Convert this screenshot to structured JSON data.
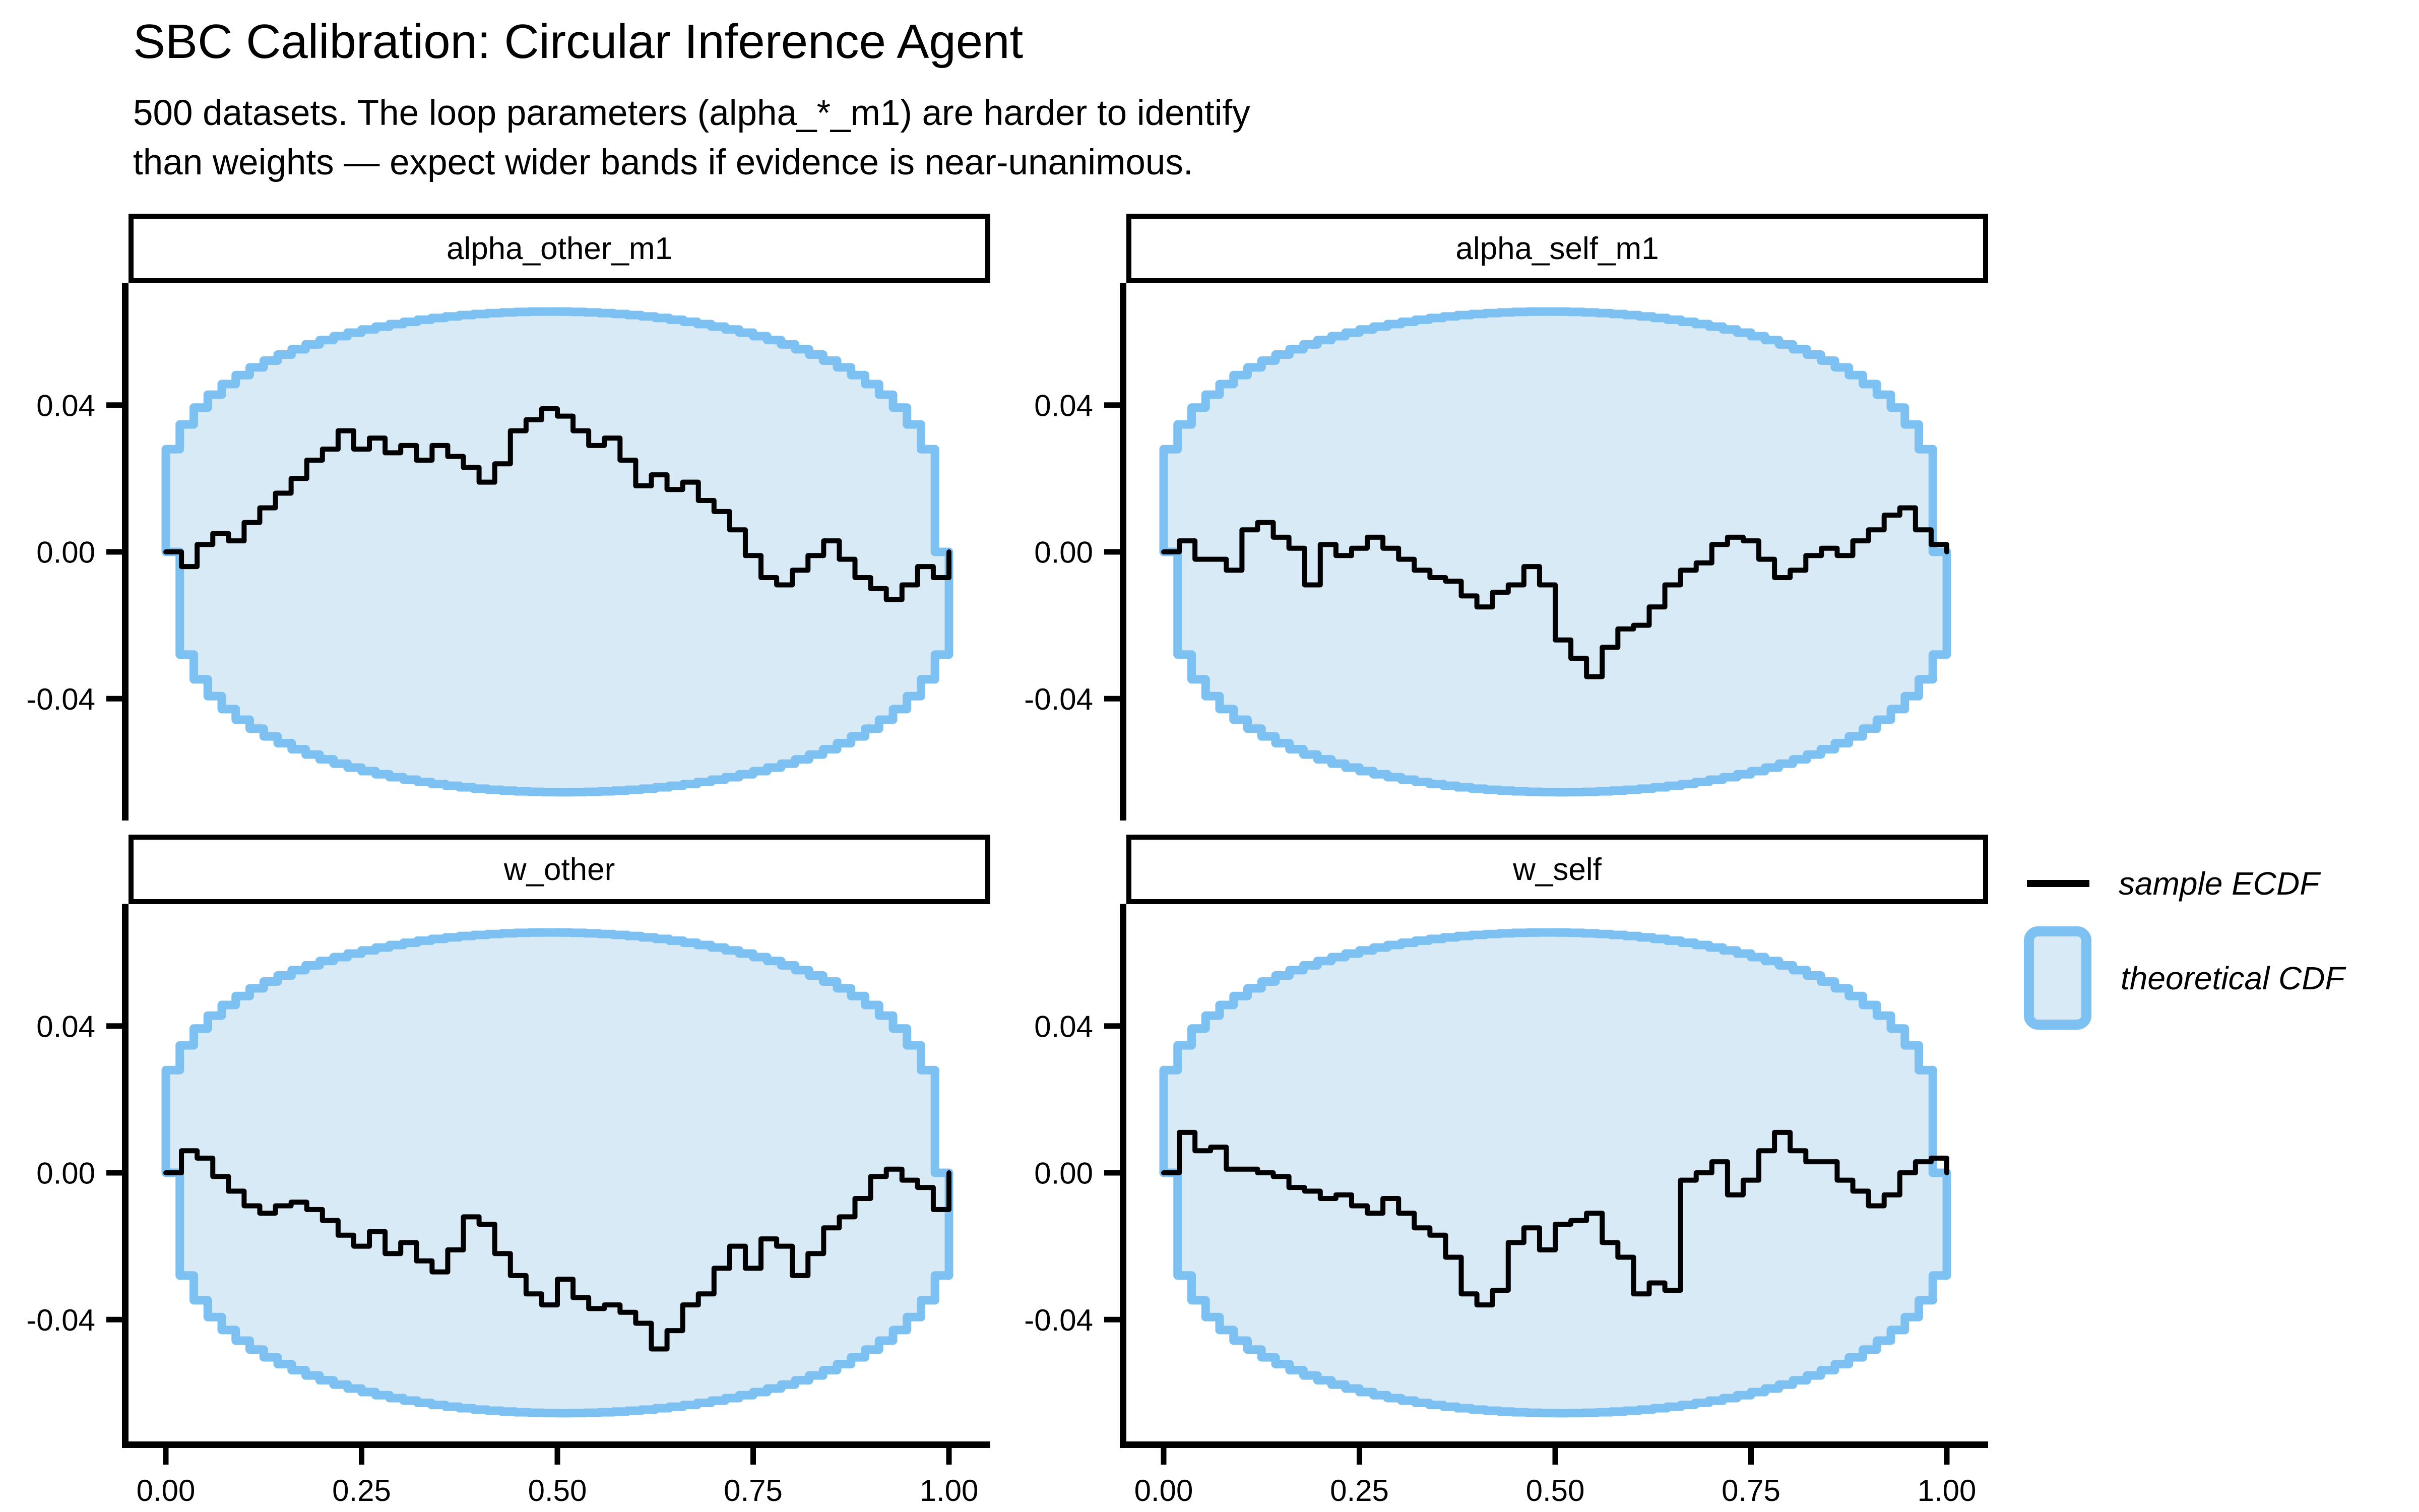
{
  "title": "SBC Calibration: Circular Inference Agent",
  "subtitle": "500 datasets. The loop parameters (alpha_*_m1) are harder to identify\nthan weights — expect wider bands if evidence is near-unanimous.",
  "legend": {
    "items": [
      {
        "label": "sample ECDF",
        "swatch": "line-swatch"
      },
      {
        "label": "theoretical CDF",
        "swatch": "band-swatch"
      }
    ]
  },
  "colors": {
    "band_fill": "#D9EAF7",
    "band_stroke": "#7DC1F2",
    "ecdf_line": "#000000",
    "axis": "#000000",
    "text": "#000000",
    "background": "#FFFFFF"
  },
  "chart_data": {
    "type": "line",
    "kind": "sbc-ecdf-diff-facets",
    "x_range": [
      0,
      1
    ],
    "ylim": [
      -0.0732,
      0.0732
    ],
    "x_ticks": [
      "0.00",
      "0.25",
      "0.50",
      "0.75",
      "1.00"
    ],
    "x_tick_values": [
      0,
      0.25,
      0.5,
      0.75,
      1
    ],
    "y_ticks": [
      "0.04",
      "0.00",
      "-0.04"
    ],
    "y_tick_values": [
      0.04,
      0,
      -0.04
    ],
    "grid": false,
    "legend_position": "right",
    "series_step": 0.02,
    "band": {
      "label": "theoretical CDF",
      "half_height_max": 0.0655,
      "shape_exponent": 0.32,
      "n_steps": 56
    },
    "panels": [
      {
        "title": "alpha_other_m1",
        "values": [
          0.0,
          -0.004,
          0.002,
          0.005,
          0.003,
          0.008,
          0.012,
          0.016,
          0.02,
          0.025,
          0.028,
          0.033,
          0.028,
          0.031,
          0.027,
          0.029,
          0.025,
          0.029,
          0.026,
          0.023,
          0.019,
          0.024,
          0.033,
          0.036,
          0.039,
          0.037,
          0.033,
          0.029,
          0.031,
          0.025,
          0.018,
          0.021,
          0.017,
          0.019,
          0.014,
          0.011,
          0.006,
          -0.001,
          -0.007,
          -0.009,
          -0.005,
          -0.001,
          0.003,
          -0.002,
          -0.007,
          -0.01,
          -0.013,
          -0.009,
          -0.004,
          -0.007,
          0.0
        ]
      },
      {
        "title": "alpha_self_m1",
        "values": [
          0.0,
          0.003,
          -0.002,
          -0.002,
          -0.005,
          0.006,
          0.008,
          0.004,
          0.001,
          -0.009,
          0.002,
          -0.001,
          0.001,
          0.004,
          0.001,
          -0.002,
          -0.005,
          -0.007,
          -0.008,
          -0.012,
          -0.015,
          -0.011,
          -0.009,
          -0.004,
          -0.009,
          -0.024,
          -0.029,
          -0.034,
          -0.026,
          -0.021,
          -0.02,
          -0.015,
          -0.009,
          -0.005,
          -0.003,
          0.002,
          0.004,
          0.003,
          -0.002,
          -0.007,
          -0.005,
          -0.001,
          0.001,
          -0.001,
          0.003,
          0.006,
          0.01,
          0.012,
          0.006,
          0.002,
          0.0
        ]
      },
      {
        "title": "w_other",
        "values": [
          0.0,
          0.006,
          0.004,
          -0.001,
          -0.005,
          -0.009,
          -0.011,
          -0.009,
          -0.008,
          -0.01,
          -0.013,
          -0.017,
          -0.02,
          -0.016,
          -0.022,
          -0.019,
          -0.024,
          -0.027,
          -0.021,
          -0.012,
          -0.014,
          -0.022,
          -0.028,
          -0.033,
          -0.036,
          -0.029,
          -0.034,
          -0.037,
          -0.036,
          -0.038,
          -0.041,
          -0.048,
          -0.043,
          -0.036,
          -0.033,
          -0.026,
          -0.02,
          -0.026,
          -0.018,
          -0.02,
          -0.028,
          -0.022,
          -0.015,
          -0.012,
          -0.007,
          -0.001,
          0.001,
          -0.002,
          -0.004,
          -0.01,
          0.0
        ]
      },
      {
        "title": "w_self",
        "values": [
          0.0,
          0.011,
          0.006,
          0.007,
          0.001,
          0.001,
          0.0,
          -0.001,
          -0.004,
          -0.005,
          -0.007,
          -0.006,
          -0.009,
          -0.011,
          -0.007,
          -0.011,
          -0.015,
          -0.017,
          -0.023,
          -0.033,
          -0.036,
          -0.032,
          -0.019,
          -0.015,
          -0.021,
          -0.014,
          -0.013,
          -0.011,
          -0.019,
          -0.023,
          -0.033,
          -0.03,
          -0.032,
          -0.002,
          0.0,
          0.003,
          -0.006,
          -0.002,
          0.006,
          0.011,
          0.006,
          0.003,
          0.003,
          -0.002,
          -0.005,
          -0.009,
          -0.006,
          0.0,
          0.003,
          0.004,
          0.0
        ]
      }
    ]
  }
}
